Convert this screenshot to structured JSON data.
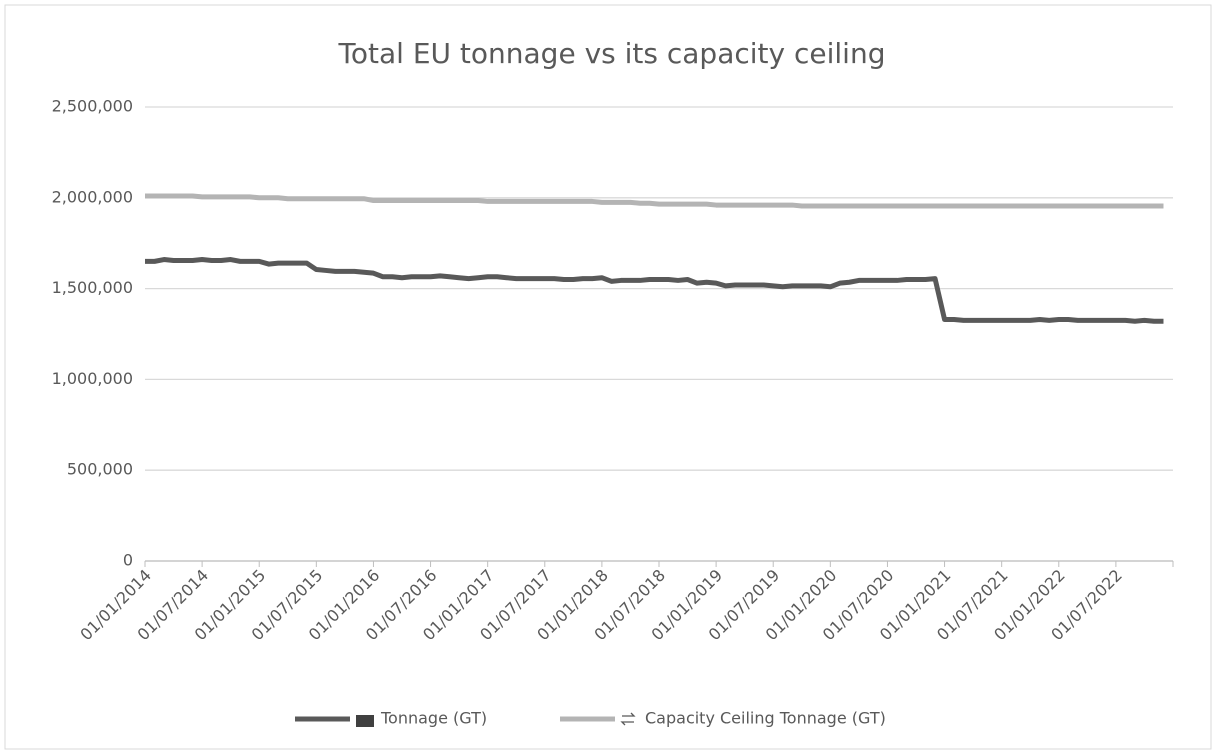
{
  "chart_data": {
    "type": "line",
    "title": "Total EU tonnage vs its capacity ceiling",
    "categories": [
      "01/01/2014",
      null,
      null,
      null,
      null,
      null,
      "01/07/2014",
      null,
      null,
      null,
      null,
      null,
      "01/01/2015",
      null,
      null,
      null,
      null,
      null,
      "01/07/2015",
      null,
      null,
      null,
      null,
      null,
      "01/01/2016",
      null,
      null,
      null,
      null,
      null,
      "01/07/2016",
      null,
      null,
      null,
      null,
      null,
      "01/01/2017",
      null,
      null,
      null,
      null,
      null,
      "01/07/2017",
      null,
      null,
      null,
      null,
      null,
      "01/01/2018",
      null,
      null,
      null,
      null,
      null,
      "01/07/2018",
      null,
      null,
      null,
      null,
      null,
      "01/01/2019",
      null,
      null,
      null,
      null,
      null,
      "01/07/2019",
      null,
      null,
      null,
      null,
      null,
      "01/01/2020",
      null,
      null,
      null,
      null,
      null,
      "01/07/2020",
      null,
      null,
      null,
      null,
      null,
      "01/01/2021",
      null,
      null,
      null,
      null,
      null,
      "01/07/2021",
      null,
      null,
      null,
      null,
      null,
      "01/01/2022",
      null,
      null,
      null,
      null,
      null,
      "01/07/2022",
      null,
      null,
      null,
      null,
      null
    ],
    "series": [
      {
        "name": "Tonnage (GT)",
        "color": "#595959",
        "values": [
          1650000,
          1650000,
          1660000,
          1655000,
          1655000,
          1655000,
          1660000,
          1655000,
          1655000,
          1660000,
          1650000,
          1650000,
          1650000,
          1635000,
          1640000,
          1640000,
          1640000,
          1640000,
          1605000,
          1600000,
          1595000,
          1595000,
          1595000,
          1590000,
          1585000,
          1565000,
          1565000,
          1560000,
          1565000,
          1565000,
          1565000,
          1570000,
          1565000,
          1560000,
          1555000,
          1560000,
          1565000,
          1565000,
          1560000,
          1555000,
          1555000,
          1555000,
          1555000,
          1555000,
          1550000,
          1550000,
          1555000,
          1555000,
          1560000,
          1540000,
          1545000,
          1545000,
          1545000,
          1550000,
          1550000,
          1550000,
          1545000,
          1550000,
          1530000,
          1535000,
          1530000,
          1515000,
          1520000,
          1520000,
          1520000,
          1520000,
          1515000,
          1510000,
          1515000,
          1515000,
          1515000,
          1515000,
          1510000,
          1530000,
          1535000,
          1545000,
          1545000,
          1545000,
          1545000,
          1545000,
          1550000,
          1550000,
          1550000,
          1555000,
          1330000,
          1330000,
          1325000,
          1325000,
          1325000,
          1325000,
          1325000,
          1325000,
          1325000,
          1325000,
          1330000,
          1325000,
          1330000,
          1330000,
          1325000,
          1325000,
          1325000,
          1325000,
          1325000,
          1325000,
          1320000,
          1325000,
          1320000,
          1320000
        ]
      },
      {
        "name": "Capacity Ceiling Tonnage (GT)",
        "color": "#b4b4b4",
        "values": [
          2010000,
          2010000,
          2010000,
          2010000,
          2010000,
          2010000,
          2005000,
          2005000,
          2005000,
          2005000,
          2005000,
          2005000,
          2000000,
          2000000,
          2000000,
          1995000,
          1995000,
          1995000,
          1995000,
          1995000,
          1995000,
          1995000,
          1995000,
          1995000,
          1985000,
          1985000,
          1985000,
          1985000,
          1985000,
          1985000,
          1985000,
          1985000,
          1985000,
          1985000,
          1985000,
          1985000,
          1980000,
          1980000,
          1980000,
          1980000,
          1980000,
          1980000,
          1980000,
          1980000,
          1980000,
          1980000,
          1980000,
          1980000,
          1975000,
          1975000,
          1975000,
          1975000,
          1970000,
          1970000,
          1965000,
          1965000,
          1965000,
          1965000,
          1965000,
          1965000,
          1960000,
          1960000,
          1960000,
          1960000,
          1960000,
          1960000,
          1960000,
          1960000,
          1960000,
          1955000,
          1955000,
          1955000,
          1955000,
          1955000,
          1955000,
          1955000,
          1955000,
          1955000,
          1955000,
          1955000,
          1955000,
          1955000,
          1955000,
          1955000,
          1955000,
          1955000,
          1955000,
          1955000,
          1955000,
          1955000,
          1955000,
          1955000,
          1955000,
          1955000,
          1955000,
          1955000,
          1955000,
          1955000,
          1955000,
          1955000,
          1955000,
          1955000,
          1955000,
          1955000,
          1955000,
          1955000,
          1955000,
          1955000
        ]
      }
    ],
    "ylim": [
      0,
      2500000
    ],
    "yticks": [
      {
        "value": 0,
        "label": "0"
      },
      {
        "value": 500000,
        "label": "500,000"
      },
      {
        "value": 1000000,
        "label": "1,000,000"
      },
      {
        "value": 1500000,
        "label": "1,500,000"
      },
      {
        "value": 2000000,
        "label": "2,000,000"
      },
      {
        "value": 2500000,
        "label": "2,500,000"
      }
    ],
    "grid": true,
    "legend": "bottom"
  }
}
